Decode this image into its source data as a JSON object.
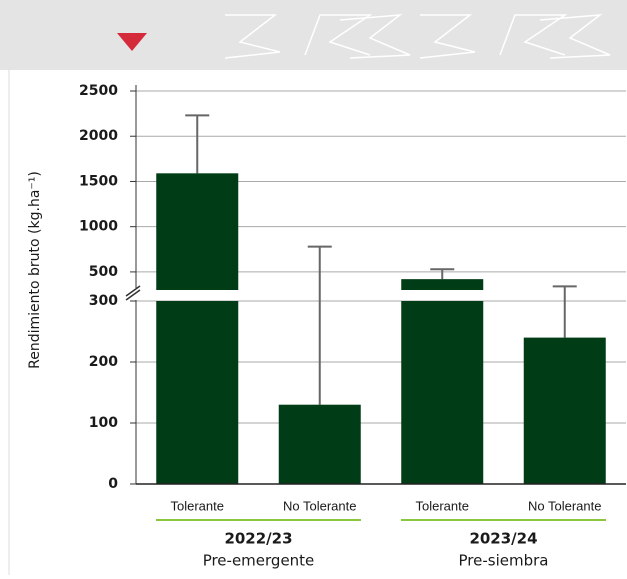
{
  "chart_data": {
    "type": "bar",
    "y_label": "Rendimiento bruto (kg.ha⁻¹)",
    "categories": [
      "Tolerante",
      "No Tolerante",
      "Tolerante",
      "No Tolerante"
    ],
    "values": [
      1590,
      130,
      420,
      240
    ],
    "errors": [
      640,
      650,
      110,
      100
    ],
    "color": "#003d16",
    "error_color": "#666666",
    "groups": [
      {
        "label": "2022/23",
        "sublabel": "Pre-emergente"
      },
      {
        "label": "2023/24",
        "sublabel": "Pre-siembra"
      }
    ],
    "ylim_lower": [
      0,
      300
    ],
    "ylim_upper": [
      300,
      2500
    ],
    "yticks": [
      0,
      100,
      200,
      300,
      500,
      1000,
      1500,
      2000,
      2500
    ],
    "grid": true
  }
}
